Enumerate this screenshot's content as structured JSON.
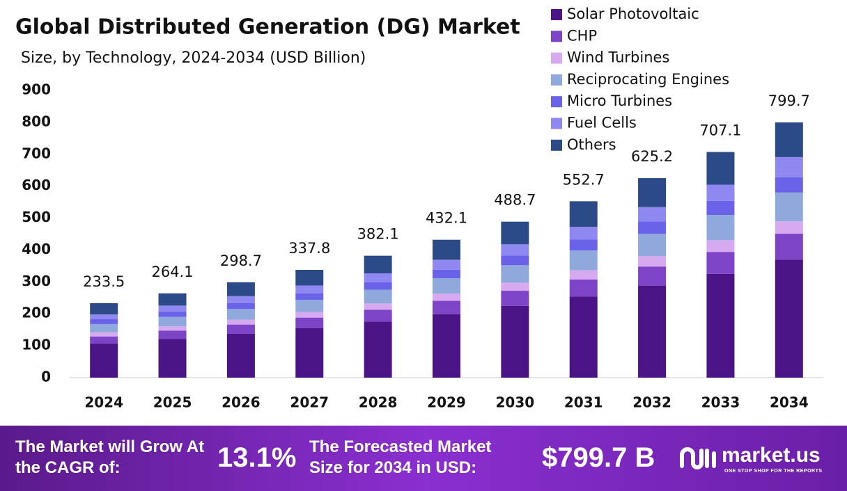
{
  "chart_data": {
    "type": "stacked_bar",
    "title": "Global Distributed Generation (DG) Market",
    "subtitle": "Size, by Technology, 2024-2034 (USD Billion)",
    "categories": [
      "2024",
      "2025",
      "2026",
      "2027",
      "2028",
      "2029",
      "2030",
      "2031",
      "2032",
      "2033",
      "2034"
    ],
    "series": [
      {
        "name": "Solar Photovoltaic",
        "color": "#4a1486",
        "values": [
          107,
          121.5,
          137.4,
          155.4,
          175.8,
          198.8,
          224.8,
          254.2,
          287.6,
          325.3,
          370
        ]
      },
      {
        "name": "CHP",
        "color": "#7e44c8",
        "values": [
          22,
          25.6,
          29.0,
          32.8,
          37.1,
          41.9,
          47.4,
          53.6,
          60.6,
          68.6,
          81
        ]
      },
      {
        "name": "Wind Turbines",
        "color": "#d6aaee",
        "values": [
          13,
          13.7,
          15.5,
          17.6,
          19.9,
          22.5,
          25.4,
          28.7,
          32.5,
          36.8,
          39
        ]
      },
      {
        "name": "Reciprocating Engines",
        "color": "#8fa9dc",
        "values": [
          26,
          29.6,
          33.5,
          37.8,
          42.8,
          48.4,
          54.7,
          61.9,
          70.0,
          79.2,
          90
        ]
      },
      {
        "name": "Micro Turbines",
        "color": "#6b62ea",
        "values": [
          15,
          16.4,
          18.5,
          20.9,
          23.7,
          26.8,
          30.3,
          34.3,
          38.8,
          43.8,
          48
        ]
      },
      {
        "name": "Fuel Cells",
        "color": "#8e88f0",
        "values": [
          15,
          19.0,
          21.5,
          24.3,
          27.5,
          31.1,
          35.2,
          39.8,
          45.0,
          50.9,
          63
        ]
      },
      {
        "name": "Others",
        "color": "#2c4a88",
        "values": [
          35.5,
          38.3,
          43.3,
          49.0,
          55.3,
          62.6,
          70.9,
          80.2,
          90.7,
          102.5,
          108.7
        ]
      }
    ],
    "total_labels": [
      233.5,
      264.1,
      298.7,
      337.8,
      382.1,
      432.1,
      488.7,
      552.7,
      625.2,
      707.1,
      799.7
    ],
    "ylim": [
      0,
      900
    ],
    "yticks": [
      0,
      100,
      200,
      300,
      400,
      500,
      600,
      700,
      800,
      900
    ],
    "grid": false,
    "legend": "top-right"
  },
  "footer": {
    "cagr_text": "The Market will Grow At the CAGR of:",
    "cagr_value": "13.1%",
    "forecast_text": "The Forecasted Market Size for 2034 in USD:",
    "forecast_value": "$799.7 B",
    "brand": "market.us",
    "tagline": "ONE STOP SHOP FOR THE REPORTS"
  }
}
